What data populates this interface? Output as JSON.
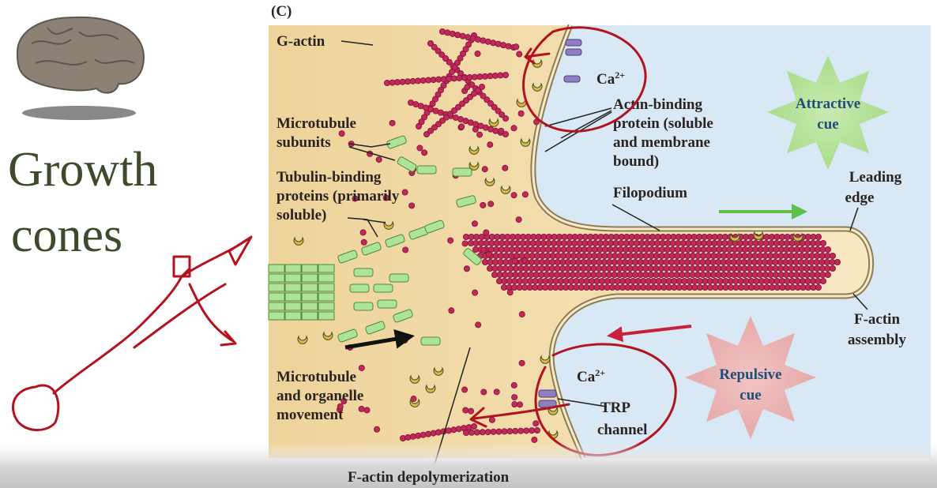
{
  "slide_title": {
    "lines": [
      "Growth",
      "cones"
    ]
  },
  "figure": {
    "panel_label": "(C)",
    "g_actin": "G-actin",
    "microtubule_subunits": [
      "Microtubule",
      "subunits"
    ],
    "tubulin_binding": [
      "Tubulin-binding",
      "proteins (primarily",
      "soluble)"
    ],
    "microtubule_movement": [
      "Microtubule",
      "and organelle",
      "movement"
    ],
    "f_actin_depolymerization": "F-actin depolymerization",
    "calcium_top": {
      "base": "Ca",
      "sup": "2+"
    },
    "calcium_bottom": {
      "base": "Ca",
      "sup": "2+"
    },
    "actin_binding": [
      "Actin-binding",
      "protein (soluble",
      "and membrane",
      "bound)"
    ],
    "filopodium": "Filopodium",
    "attractive_cue": [
      "Attractive",
      "cue"
    ],
    "leading_edge": [
      "Leading",
      "edge"
    ],
    "f_actin_assembly": [
      "F-actin",
      "assembly"
    ],
    "repulsive_cue": [
      "Repulsive",
      "cue"
    ],
    "trp_channel": [
      "TRP",
      "channel"
    ]
  }
}
